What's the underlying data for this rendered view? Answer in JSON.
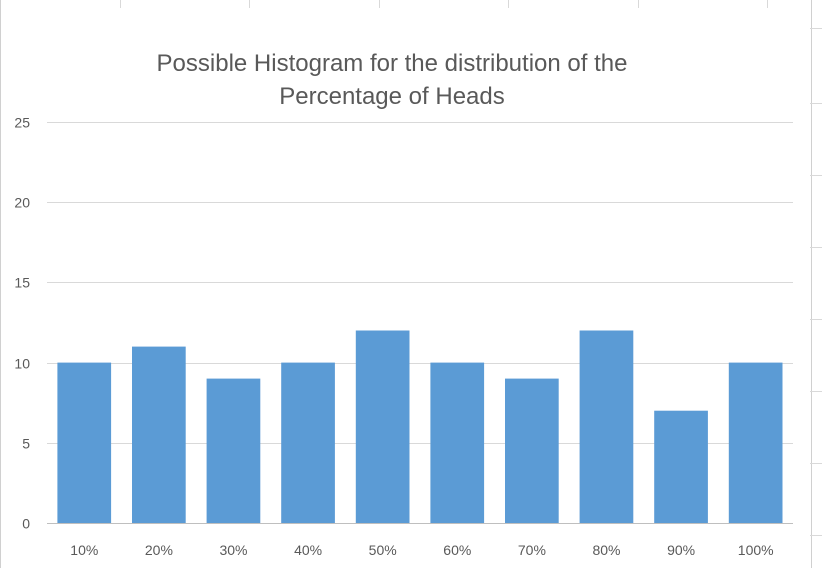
{
  "chart_data": {
    "type": "bar",
    "title_lines": [
      "Possible Histogram for the distribution of the",
      "Percentage of Heads"
    ],
    "categories": [
      "10%",
      "20%",
      "30%",
      "40%",
      "50%",
      "60%",
      "70%",
      "80%",
      "90%",
      "100%"
    ],
    "values": [
      10,
      11,
      9,
      10,
      12,
      10,
      9,
      12,
      7,
      10
    ],
    "ylim": [
      0,
      25
    ],
    "yticks": [
      0,
      5,
      10,
      15,
      20,
      25
    ],
    "xlabel": "",
    "ylabel": "",
    "grid": true,
    "legend": "none",
    "bar_color": "#5b9bd5",
    "grid_color": "#d9d9d9",
    "text_color": "#595959"
  }
}
